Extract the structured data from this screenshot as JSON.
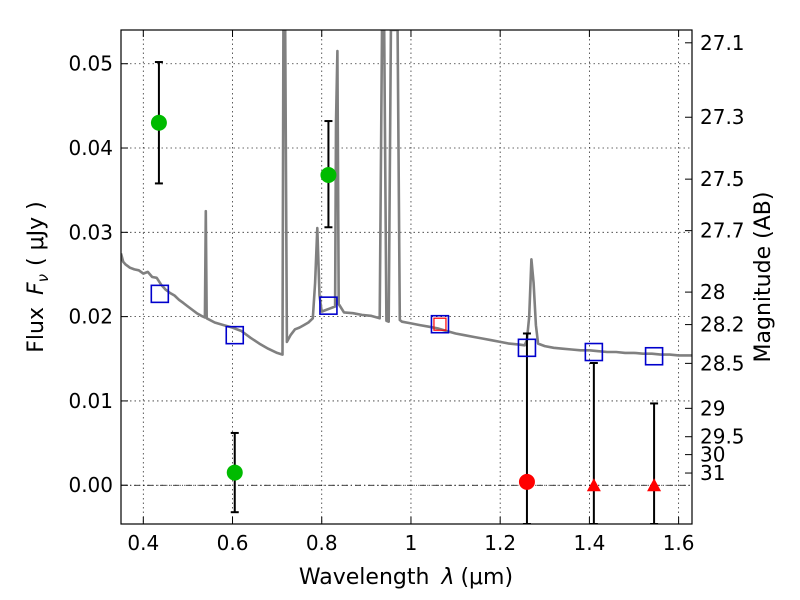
{
  "chart_data": {
    "type": "scatter",
    "xlabel_prefix": "Wavelength",
    "xlabel_symbol": "λ",
    "xlabel_unit": "(μm)",
    "ylabel_prefix": "Flux",
    "ylabel_symbol": "F",
    "ylabel_sub": "ν",
    "ylabel_unit": "( μJy )",
    "y2label": "Magnitude (AB)",
    "xlim": [
      0.35,
      1.63
    ],
    "ylim": [
      -0.0046,
      0.054
    ],
    "grid": true,
    "x_ticks": [
      0.4,
      0.6,
      0.8,
      1.0,
      1.2,
      1.4,
      1.6
    ],
    "x_tick_labels": [
      "0.4",
      "0.6",
      "0.8",
      "1",
      "1.2",
      "1.4",
      "1.6"
    ],
    "y_ticks": [
      0.0,
      0.01,
      0.02,
      0.03,
      0.04,
      0.05
    ],
    "y_tick_labels": [
      "0.00",
      "0.01",
      "0.02",
      "0.03",
      "0.04",
      "0.05"
    ],
    "mag_ticks": [
      "27.1",
      "27.3",
      "27.5",
      "27.7",
      "28",
      "28.2",
      "28.5",
      "29",
      "29.5",
      "30",
      "31"
    ],
    "colors": {
      "model": "#808080",
      "detection": "#00bb00",
      "nondetection": "#ff0000",
      "model_phot": "#0000cc",
      "errorbar": "#000000"
    },
    "model_spectrum": [
      [
        0.35,
        0.0275
      ],
      [
        0.355,
        0.0265
      ],
      [
        0.36,
        0.0262
      ],
      [
        0.37,
        0.0258
      ],
      [
        0.38,
        0.0256
      ],
      [
        0.39,
        0.0255
      ],
      [
        0.4,
        0.0251
      ],
      [
        0.41,
        0.0253
      ],
      [
        0.42,
        0.0247
      ],
      [
        0.43,
        0.0246
      ],
      [
        0.44,
        0.0238
      ],
      [
        0.45,
        0.0232
      ],
      [
        0.46,
        0.0228
      ],
      [
        0.47,
        0.0225
      ],
      [
        0.48,
        0.022
      ],
      [
        0.49,
        0.0216
      ],
      [
        0.5,
        0.0212
      ],
      [
        0.51,
        0.0208
      ],
      [
        0.52,
        0.0204
      ],
      [
        0.53,
        0.0201
      ],
      [
        0.538,
        0.0199
      ],
      [
        0.54,
        0.0325
      ],
      [
        0.542,
        0.0198
      ],
      [
        0.56,
        0.0193
      ],
      [
        0.58,
        0.019
      ],
      [
        0.6,
        0.0187
      ],
      [
        0.62,
        0.0183
      ],
      [
        0.64,
        0.0175
      ],
      [
        0.66,
        0.0168
      ],
      [
        0.68,
        0.0162
      ],
      [
        0.7,
        0.0157
      ],
      [
        0.712,
        0.0155
      ],
      [
        0.714,
        0.054
      ],
      [
        0.718,
        0.054
      ],
      [
        0.722,
        0.017
      ],
      [
        0.73,
        0.0178
      ],
      [
        0.74,
        0.0185
      ],
      [
        0.75,
        0.0187
      ],
      [
        0.76,
        0.019
      ],
      [
        0.77,
        0.0193
      ],
      [
        0.78,
        0.0198
      ],
      [
        0.785,
        0.024
      ],
      [
        0.79,
        0.0305
      ],
      [
        0.795,
        0.0225
      ],
      [
        0.8,
        0.0206
      ],
      [
        0.81,
        0.0208
      ],
      [
        0.82,
        0.021
      ],
      [
        0.83,
        0.0212
      ],
      [
        0.832,
        0.043
      ],
      [
        0.835,
        0.0515
      ],
      [
        0.838,
        0.0215
      ],
      [
        0.85,
        0.0205
      ],
      [
        0.87,
        0.0204
      ],
      [
        0.89,
        0.0202
      ],
      [
        0.91,
        0.0201
      ],
      [
        0.93,
        0.0198
      ],
      [
        0.935,
        0.054
      ],
      [
        0.94,
        0.054
      ],
      [
        0.945,
        0.0195
      ],
      [
        0.95,
        0.0194
      ],
      [
        0.955,
        0.054
      ],
      [
        0.96,
        0.054
      ],
      [
        0.965,
        0.054
      ],
      [
        0.97,
        0.054
      ],
      [
        0.975,
        0.0196
      ],
      [
        0.98,
        0.0194
      ],
      [
        1.0,
        0.0192
      ],
      [
        1.02,
        0.019
      ],
      [
        1.04,
        0.0188
      ],
      [
        1.06,
        0.0186
      ],
      [
        1.08,
        0.0183
      ],
      [
        1.1,
        0.018
      ],
      [
        1.12,
        0.0178
      ],
      [
        1.14,
        0.0176
      ],
      [
        1.16,
        0.0174
      ],
      [
        1.18,
        0.0172
      ],
      [
        1.2,
        0.017
      ],
      [
        1.22,
        0.0168
      ],
      [
        1.24,
        0.0167
      ],
      [
        1.255,
        0.0166
      ],
      [
        1.26,
        0.0172
      ],
      [
        1.265,
        0.02
      ],
      [
        1.27,
        0.0268
      ],
      [
        1.275,
        0.024
      ],
      [
        1.28,
        0.019
      ],
      [
        1.285,
        0.0168
      ],
      [
        1.3,
        0.0165
      ],
      [
        1.32,
        0.0163
      ],
      [
        1.34,
        0.0162
      ],
      [
        1.36,
        0.0161
      ],
      [
        1.38,
        0.016
      ],
      [
        1.4,
        0.016
      ],
      [
        1.42,
        0.0159
      ],
      [
        1.44,
        0.0158
      ],
      [
        1.46,
        0.0158
      ],
      [
        1.48,
        0.0157
      ],
      [
        1.5,
        0.0157
      ],
      [
        1.52,
        0.0156
      ],
      [
        1.54,
        0.0156
      ],
      [
        1.56,
        0.0155
      ],
      [
        1.58,
        0.0155
      ],
      [
        1.6,
        0.0154
      ],
      [
        1.63,
        0.0154
      ]
    ],
    "detections": [
      {
        "x": 0.435,
        "y": 0.043,
        "yerr_low": 0.0358,
        "yerr_high": 0.0502
      },
      {
        "x": 0.815,
        "y": 0.0368,
        "yerr_low": 0.0306,
        "yerr_high": 0.0432
      },
      {
        "x": 0.605,
        "y": 0.0015,
        "yerr_low": -0.0032,
        "yerr_high": 0.0062
      }
    ],
    "nondetections": [
      {
        "x": 1.26,
        "y": 0.0004,
        "yerr_low": -0.0046,
        "yerr_high": 0.018,
        "marker": "circle"
      },
      {
        "x": 1.41,
        "y": 0.0,
        "yerr_low": -0.0046,
        "yerr_high": 0.0145,
        "marker": "triangle"
      },
      {
        "x": 1.545,
        "y": 0.0,
        "yerr_low": -0.0046,
        "yerr_high": 0.0097,
        "marker": "triangle"
      }
    ],
    "model_photometry": [
      {
        "x": 0.437,
        "y": 0.0227
      },
      {
        "x": 0.605,
        "y": 0.0178
      },
      {
        "x": 0.815,
        "y": 0.0213
      },
      {
        "x": 1.065,
        "y": 0.0191
      },
      {
        "x": 1.26,
        "y": 0.0163
      },
      {
        "x": 1.41,
        "y": 0.0158
      },
      {
        "x": 1.545,
        "y": 0.0153
      }
    ],
    "highlight_point": {
      "x": 1.065,
      "y": 0.0191
    }
  }
}
